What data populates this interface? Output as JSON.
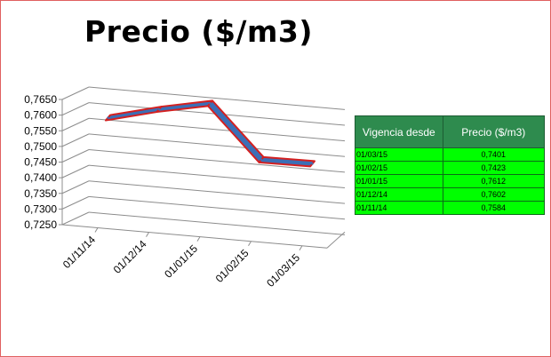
{
  "chart_data": {
    "type": "line",
    "title": "Precio ($/m3)",
    "categories": [
      "01/11/14",
      "01/12/14",
      "01/01/15",
      "01/02/15",
      "01/03/15"
    ],
    "series": [
      {
        "values": [
          0.7584,
          0.7602,
          0.7612,
          0.7423,
          0.7401
        ]
      }
    ],
    "ylim": [
      0.725,
      0.765
    ],
    "yticks": [
      "0,7650",
      "0,7600",
      "0,7550",
      "0,7500",
      "0,7450",
      "0,7400",
      "0,7350",
      "0,7300",
      "0,7250"
    ],
    "grid": true,
    "style": "3d-line",
    "colors": {
      "line": "#3b6fb6",
      "line_edge": "#d42020"
    }
  },
  "table": {
    "headers": [
      "Vigencia desde",
      "Precio ($/m3)"
    ],
    "rows": [
      [
        "01/03/15",
        "0,7401"
      ],
      [
        "01/02/15",
        "0,7423"
      ],
      [
        "01/01/15",
        "0,7612"
      ],
      [
        "01/12/14",
        "0,7602"
      ],
      [
        "01/11/14",
        "0,7584"
      ]
    ],
    "colors": {
      "header_bg": "#2e8b4e",
      "cell_bg": "#00ff00"
    }
  }
}
